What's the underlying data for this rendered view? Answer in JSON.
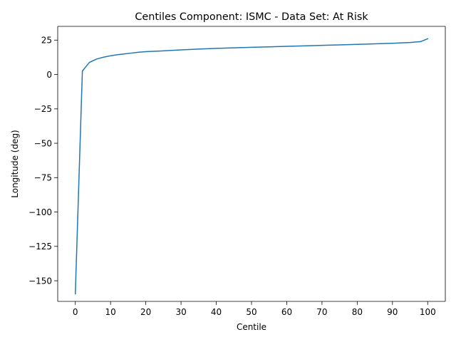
{
  "chart_data": {
    "type": "line",
    "title": "Centiles Component: ISMC - Data Set: At Risk",
    "xlabel": "Centile",
    "ylabel": "Longitude (deg)",
    "xlim": [
      -5,
      105
    ],
    "ylim": [
      -165,
      35
    ],
    "xticks": [
      0,
      10,
      20,
      30,
      40,
      50,
      60,
      70,
      80,
      90,
      100
    ],
    "yticks": [
      -150,
      -125,
      -100,
      -75,
      -50,
      -25,
      0,
      25
    ],
    "ytick_labels": [
      "−150",
      "−125",
      "−100",
      "−75",
      "−50",
      "−25",
      "0",
      "25"
    ],
    "grid": false,
    "legend": false,
    "line_color": "#1f77b4",
    "series": [
      {
        "x": [
          0,
          2,
          4,
          6,
          8,
          10,
          12,
          14,
          16,
          18,
          20,
          25,
          30,
          35,
          40,
          45,
          50,
          55,
          60,
          65,
          70,
          75,
          80,
          85,
          90,
          95,
          98,
          100
        ],
        "values": [
          -159.5,
          2.5,
          8.8,
          11.2,
          12.6,
          13.6,
          14.4,
          15.0,
          15.6,
          16.2,
          16.6,
          17.2,
          17.9,
          18.5,
          19.0,
          19.4,
          19.8,
          20.1,
          20.5,
          20.8,
          21.2,
          21.5,
          21.9,
          22.3,
          22.7,
          23.3,
          23.9,
          26.0
        ]
      }
    ]
  }
}
